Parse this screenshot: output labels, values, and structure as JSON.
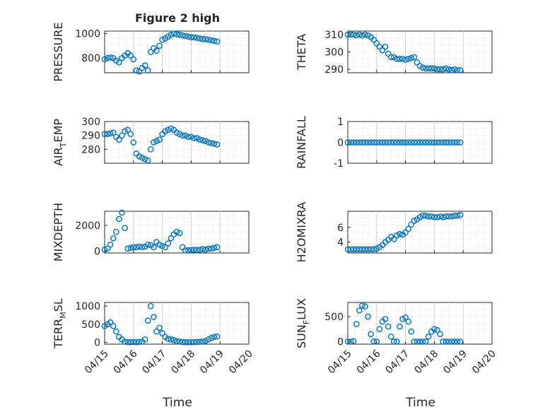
{
  "figure": {
    "title": "Figure 2 high",
    "x_dates": [
      "04/15",
      "04/16",
      "04/17",
      "04/18",
      "04/19",
      "04/20"
    ],
    "xlabel": "Time",
    "marker_color": "#0072BD"
  },
  "chart_data": [
    {
      "type": "scatter",
      "ylabel": "PRESSURE",
      "ylim": [
        680,
        1020
      ],
      "yticks": [
        800,
        1000
      ],
      "x": [
        0,
        0.1,
        0.2,
        0.3,
        0.4,
        0.5,
        0.6,
        0.7,
        0.8,
        0.9,
        1.0,
        1.1,
        1.2,
        1.3,
        1.4,
        1.5,
        1.6,
        1.7,
        1.8,
        1.9,
        2.0,
        2.1,
        2.2,
        2.3,
        2.4,
        2.5,
        2.6,
        2.7,
        2.8,
        2.9,
        3.0,
        3.1,
        3.2,
        3.3,
        3.4,
        3.5,
        3.6,
        3.7,
        3.8,
        3.9
      ],
      "y": [
        790,
        800,
        805,
        800,
        780,
        765,
        800,
        820,
        840,
        820,
        790,
        700,
        690,
        720,
        740,
        700,
        850,
        880,
        860,
        900,
        950,
        960,
        975,
        990,
        1000,
        995,
        990,
        985,
        980,
        975,
        970,
        970,
        965,
        960,
        955,
        955,
        950,
        945,
        940,
        935
      ]
    },
    {
      "type": "scatter",
      "ylabel": "THETA",
      "ylim": [
        288,
        312
      ],
      "yticks": [
        290,
        300,
        310
      ],
      "x": [
        0,
        0.1,
        0.2,
        0.3,
        0.4,
        0.5,
        0.6,
        0.7,
        0.8,
        0.9,
        1.0,
        1.1,
        1.2,
        1.3,
        1.4,
        1.5,
        1.6,
        1.7,
        1.8,
        1.9,
        2.0,
        2.1,
        2.2,
        2.3,
        2.4,
        2.5,
        2.6,
        2.7,
        2.8,
        2.9,
        3.0,
        3.1,
        3.2,
        3.3,
        3.4,
        3.5,
        3.6,
        3.7,
        3.8,
        3.9
      ],
      "y": [
        310,
        310,
        310,
        309.5,
        310,
        309.5,
        310,
        309.5,
        308.5,
        307,
        305,
        303,
        301,
        303,
        299,
        297,
        297,
        296,
        296,
        296,
        295.5,
        296,
        296.5,
        297,
        294,
        292,
        291,
        290.5,
        290.5,
        290.5,
        290.5,
        290,
        290,
        290,
        290.5,
        290,
        289.5,
        290,
        289.5,
        289.5
      ]
    },
    {
      "type": "scatter",
      "ylabel": "AIR_TEMP",
      "ylim": [
        270,
        300
      ],
      "yticks": [
        280,
        290,
        300
      ],
      "x": [
        0,
        0.1,
        0.2,
        0.3,
        0.4,
        0.5,
        0.6,
        0.7,
        0.8,
        0.9,
        1.0,
        1.1,
        1.2,
        1.3,
        1.4,
        1.5,
        1.6,
        1.7,
        1.8,
        1.9,
        2.0,
        2.1,
        2.2,
        2.3,
        2.4,
        2.5,
        2.6,
        2.7,
        2.8,
        2.9,
        3.0,
        3.1,
        3.2,
        3.3,
        3.4,
        3.5,
        3.6,
        3.7,
        3.8,
        3.9
      ],
      "y": [
        291,
        291,
        291.5,
        292,
        289,
        287,
        290,
        293,
        294,
        291,
        285,
        277,
        275,
        274,
        273,
        272,
        280,
        285,
        286,
        287,
        291,
        293,
        294,
        295,
        294,
        292,
        291,
        290,
        290,
        289,
        289,
        288,
        288,
        287,
        286.5,
        286,
        285,
        284.5,
        284,
        283.5
      ]
    },
    {
      "type": "scatter",
      "ylabel": "RAINFALL",
      "ylim": [
        -1,
        1
      ],
      "yticks": [
        -1,
        0,
        1
      ],
      "x": [
        0,
        0.1,
        0.2,
        0.3,
        0.4,
        0.5,
        0.6,
        0.7,
        0.8,
        0.9,
        1.0,
        1.1,
        1.2,
        1.3,
        1.4,
        1.5,
        1.6,
        1.7,
        1.8,
        1.9,
        2.0,
        2.1,
        2.2,
        2.3,
        2.4,
        2.5,
        2.6,
        2.7,
        2.8,
        2.9,
        3.0,
        3.1,
        3.2,
        3.3,
        3.4,
        3.5,
        3.6,
        3.7,
        3.8,
        3.9
      ],
      "y": [
        0,
        0,
        0,
        0,
        0,
        0,
        0,
        0,
        0,
        0,
        0,
        0,
        0,
        0,
        0,
        0,
        0,
        0,
        0,
        0,
        0,
        0,
        0,
        0,
        0,
        0,
        0,
        0,
        0,
        0,
        0,
        0,
        0,
        0,
        0,
        0,
        0,
        0,
        0,
        0
      ]
    },
    {
      "type": "scatter",
      "ylabel": "MIXDEPTH",
      "ylim": [
        -150,
        3100
      ],
      "yticks": [
        0,
        2000
      ],
      "x": [
        0,
        0.1,
        0.2,
        0.3,
        0.4,
        0.5,
        0.6,
        0.7,
        0.8,
        0.9,
        1.0,
        1.1,
        1.2,
        1.3,
        1.4,
        1.5,
        1.6,
        1.7,
        1.8,
        1.9,
        2.0,
        2.1,
        2.2,
        2.3,
        2.4,
        2.5,
        2.6,
        2.7,
        2.8,
        2.9,
        3.0,
        3.1,
        3.2,
        3.3,
        3.4,
        3.5,
        3.6,
        3.7,
        3.8,
        3.9
      ],
      "y": [
        100,
        200,
        500,
        1000,
        1500,
        2500,
        3000,
        1800,
        200,
        250,
        300,
        300,
        350,
        300,
        350,
        500,
        450,
        300,
        700,
        500,
        400,
        300,
        600,
        1000,
        1300,
        1500,
        1400,
        300,
        50,
        60,
        80,
        100,
        80,
        100,
        150,
        120,
        180,
        200,
        250,
        300
      ]
    },
    {
      "type": "scatter",
      "ylabel": "H2OMIXRA",
      "ylim": [
        2.5,
        8.2
      ],
      "yticks": [
        4,
        6
      ],
      "x": [
        0,
        0.1,
        0.2,
        0.3,
        0.4,
        0.5,
        0.6,
        0.7,
        0.8,
        0.9,
        1.0,
        1.1,
        1.2,
        1.3,
        1.4,
        1.5,
        1.6,
        1.7,
        1.8,
        1.9,
        2.0,
        2.1,
        2.2,
        2.3,
        2.4,
        2.5,
        2.6,
        2.7,
        2.8,
        2.9,
        3.0,
        3.1,
        3.2,
        3.3,
        3.4,
        3.5,
        3.6,
        3.7,
        3.8,
        3.9
      ],
      "y": [
        3.0,
        3.0,
        3.0,
        3.0,
        3.0,
        3.0,
        3.0,
        3.0,
        3.0,
        3.0,
        3.1,
        3.3,
        3.6,
        4.0,
        4.3,
        4.7,
        4.4,
        4.9,
        5.1,
        5.0,
        5.3,
        5.8,
        6.4,
        6.9,
        7.1,
        7.4,
        7.6,
        7.6,
        7.5,
        7.5,
        7.4,
        7.4,
        7.5,
        7.4,
        7.5,
        7.5,
        7.5,
        7.6,
        7.6,
        7.7
      ]
    },
    {
      "type": "scatter",
      "ylabel": "TERR_MSL",
      "ylim": [
        -50,
        1100
      ],
      "yticks": [
        0,
        500,
        1000
      ],
      "x": [
        0,
        0.1,
        0.2,
        0.3,
        0.4,
        0.5,
        0.6,
        0.7,
        0.8,
        0.9,
        1.0,
        1.1,
        1.2,
        1.3,
        1.4,
        1.5,
        1.6,
        1.7,
        1.8,
        1.9,
        2.0,
        2.1,
        2.2,
        2.3,
        2.4,
        2.5,
        2.6,
        2.7,
        2.8,
        2.9,
        3.0,
        3.1,
        3.2,
        3.3,
        3.4,
        3.5,
        3.6,
        3.7,
        3.8,
        3.9
      ],
      "y": [
        450,
        500,
        550,
        450,
        300,
        150,
        80,
        20,
        5,
        5,
        10,
        5,
        10,
        20,
        80,
        600,
        1000,
        700,
        300,
        400,
        250,
        150,
        100,
        80,
        60,
        30,
        20,
        10,
        5,
        5,
        5,
        8,
        10,
        15,
        20,
        40,
        80,
        120,
        150,
        160
      ]
    },
    {
      "type": "scatter",
      "ylabel": "SUN_FLUX",
      "ylim": [
        -50,
        780
      ],
      "yticks": [
        0,
        500
      ],
      "x": [
        0,
        0.1,
        0.2,
        0.3,
        0.4,
        0.5,
        0.6,
        0.7,
        0.8,
        0.9,
        1.0,
        1.1,
        1.2,
        1.3,
        1.4,
        1.5,
        1.6,
        1.7,
        1.8,
        1.9,
        2.0,
        2.1,
        2.2,
        2.3,
        2.4,
        2.5,
        2.6,
        2.7,
        2.8,
        2.9,
        3.0,
        3.1,
        3.2,
        3.3,
        3.4,
        3.5,
        3.6,
        3.7,
        3.8,
        3.9
      ],
      "y": [
        0,
        0,
        10,
        350,
        620,
        720,
        700,
        500,
        150,
        5,
        0,
        250,
        400,
        450,
        300,
        100,
        0,
        0,
        300,
        450,
        480,
        400,
        200,
        0,
        0,
        0,
        0,
        0,
        100,
        200,
        250,
        230,
        150,
        0,
        0,
        0,
        0,
        0,
        0,
        0
      ]
    }
  ]
}
